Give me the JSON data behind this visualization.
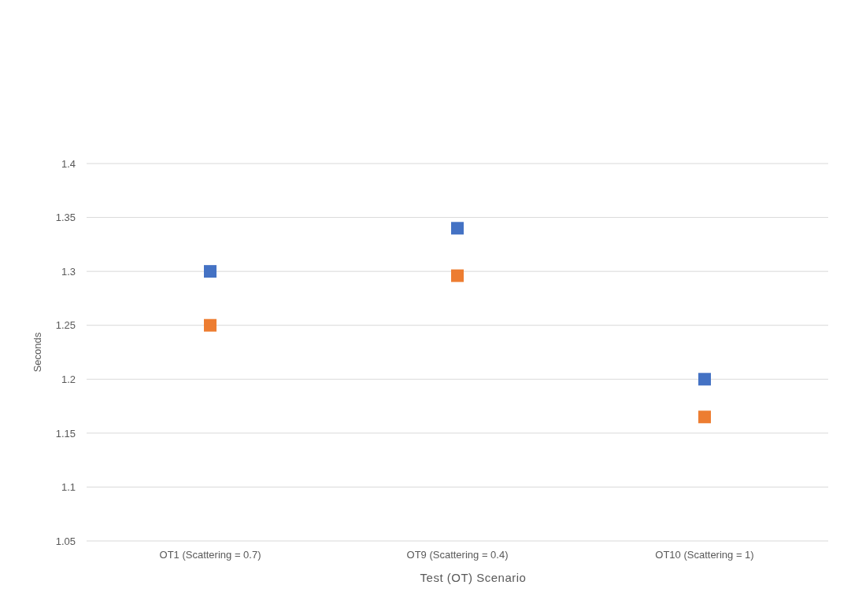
{
  "chart_data": {
    "type": "scatter",
    "xlabel": "Test (OT) Scenario",
    "ylabel": "Seconds",
    "categories": [
      "OT1 (Scattering = 0.7)",
      "OT9 (Scattering = 0.4)",
      "OT10 (Scattering = 1)"
    ],
    "series": [
      {
        "color": "#4472c4",
        "values": [
          1.3,
          1.34,
          1.2
        ]
      },
      {
        "color": "#ed7d31",
        "values": [
          1.25,
          1.296,
          1.165
        ]
      }
    ],
    "ylim": [
      1.05,
      1.4
    ],
    "yticks": [
      1.05,
      1.1,
      1.15,
      1.2,
      1.25,
      1.3,
      1.35,
      1.4
    ],
    "grid": "y",
    "marker": "square"
  }
}
